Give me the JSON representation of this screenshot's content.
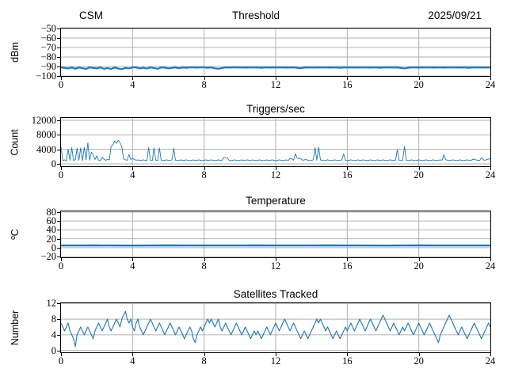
{
  "figure": {
    "background": "#ffffff",
    "line_color": "#1f77b4",
    "grid_color": "#b0b0b0",
    "spine_color": "#000000",
    "tick_color": "#000000"
  },
  "chart_data": [
    {
      "type": "line",
      "title": "Threshold",
      "title_left": "CSM",
      "title_right": "2025/09/21",
      "ylabel": "dBm",
      "xlabel": "",
      "xlim": [
        0,
        24
      ],
      "ylim": [
        -100,
        -50
      ],
      "xticks": [
        0,
        4,
        8,
        12,
        16,
        20,
        24
      ],
      "yticks": [
        -50,
        -60,
        -70,
        -80,
        -90,
        -100
      ],
      "grid": true,
      "legend": "none",
      "x_step": 0.2,
      "values": [
        -91,
        -91.5,
        -92,
        -91,
        -92.3,
        -91,
        -91.8,
        -92.5,
        -91,
        -91.5,
        -92,
        -91,
        -92.4,
        -91.6,
        -92.6,
        -91,
        -92.2,
        -92.8,
        -91.4,
        -92,
        -91,
        -91,
        -92,
        -91.3,
        -92.2,
        -91,
        -91.6,
        -92.4,
        -91,
        -91.2,
        -92,
        -91.5,
        -91,
        -91.8,
        -91,
        -91.3,
        -91,
        -91,
        -91.2,
        -91,
        -91,
        -91.4,
        -91,
        -91.9,
        -92.3,
        -91.6,
        -91,
        -91.2,
        -91,
        -91,
        -91.1,
        -91,
        -91.2,
        -91,
        -91.1,
        -91,
        -91.3,
        -91,
        -91.1,
        -91.2,
        -91,
        -91.1,
        -91,
        -91.2,
        -91.1,
        -91,
        -91.4,
        -91.8,
        -91.2,
        -91,
        -91.1,
        -91.2,
        -91,
        -91.1,
        -91,
        -91.2,
        -91,
        -91.1,
        -91.3,
        -91,
        -91.1,
        -91,
        -91.2,
        -91,
        -91.1,
        -91,
        -91.2,
        -91.1,
        -91,
        -91.3,
        -91,
        -91.1,
        -91,
        -91.2,
        -91,
        -91.6,
        -92,
        -91.3,
        -91,
        -91.1,
        -91.2,
        -91,
        -91.1,
        -91,
        -91.2,
        -91,
        -91.1,
        -91.2,
        -91,
        -91.1,
        -91,
        -91.2,
        -91,
        -91.1,
        -91.3,
        -91,
        -91.1,
        -91,
        -91.2,
        -91,
        -91.1,
        -91
      ]
    },
    {
      "type": "line",
      "title": "Triggers/sec",
      "ylabel": "Count",
      "xlabel": "",
      "xlim": [
        0,
        24
      ],
      "ylim": [
        0,
        12000
      ],
      "xticks": [
        0,
        4,
        8,
        12,
        16,
        20,
        24
      ],
      "yticks": [
        0,
        4000,
        8000,
        12000
      ],
      "grid": true,
      "legend": "none",
      "x_step": 0.1,
      "values": [
        4800,
        900,
        1100,
        800,
        4000,
        1000,
        4500,
        900,
        1200,
        4300,
        1000,
        4400,
        900,
        4600,
        1100,
        5800,
        1000,
        3200,
        2600,
        1200,
        2200,
        1000,
        900,
        1800,
        1300,
        1000,
        1200,
        1100,
        4800,
        5200,
        6300,
        5600,
        6500,
        5900,
        4700,
        1400,
        1100,
        1000,
        2600,
        1200,
        1500,
        1200,
        1000,
        1100,
        900,
        1000,
        1100,
        1000,
        900,
        4500,
        1000,
        900,
        4400,
        1000,
        900,
        4400,
        1000,
        900,
        1000,
        1100,
        1000,
        900,
        1100,
        4300,
        1000,
        900,
        1000,
        1100,
        900,
        1000,
        1100,
        1000,
        900,
        1000,
        1100,
        900,
        1000,
        1100,
        1000,
        900,
        1000,
        1100,
        900,
        1000,
        1100,
        1000,
        900,
        1000,
        1100,
        900,
        1000,
        1800,
        1700,
        1600,
        1000,
        900,
        1000,
        1100,
        1000,
        900,
        1000,
        1100,
        900,
        1000,
        1100,
        1000,
        900,
        1100,
        1000,
        900,
        1000,
        1100,
        1000,
        900,
        1000,
        1100,
        900,
        1000,
        1100,
        1000,
        900,
        1000,
        1100,
        1000,
        900,
        1000,
        1100,
        900,
        1500,
        1400,
        1000,
        2800,
        1600,
        1500,
        1400,
        1000,
        1100,
        1200,
        1000,
        900,
        1000,
        1100,
        4500,
        1000,
        4600,
        1100,
        1000,
        900,
        1000,
        1100,
        1000,
        900,
        1000,
        1100,
        1000,
        900,
        1000,
        1100,
        2800,
        1000,
        900,
        1000,
        1100,
        1000,
        900,
        1000,
        1100,
        900,
        1000,
        1100,
        1000,
        900,
        1000,
        1100,
        1000,
        900,
        1000,
        1100,
        900,
        1000,
        1100,
        1000,
        900,
        1000,
        1100,
        1000,
        900,
        1000,
        4000,
        1000,
        900,
        1000,
        4800,
        1000,
        900,
        1000,
        1100,
        1000,
        900,
        1000,
        1100,
        1000,
        900,
        1000,
        1100,
        1000,
        900,
        1000,
        1100,
        1000,
        900,
        1000,
        1100,
        1000,
        2500,
        1200,
        1000,
        900,
        1000,
        1100,
        1000,
        900,
        1000,
        1100,
        1000,
        900,
        1000,
        1100,
        1000,
        900,
        1200,
        1300,
        1100,
        1000,
        900,
        1700,
        1100,
        1000,
        1200,
        1300,
        1400
      ]
    },
    {
      "type": "line",
      "title": "Temperature",
      "ylabel": "ºC",
      "xlabel": "",
      "xlim": [
        0,
        24
      ],
      "ylim": [
        -20,
        80
      ],
      "xticks": [
        0,
        4,
        8,
        12,
        16,
        20,
        24
      ],
      "yticks": [
        -20,
        0,
        20,
        40,
        60,
        80
      ],
      "grid": true,
      "legend": "none",
      "x_step": 1,
      "values": [
        5,
        5,
        5.2,
        5,
        4.8,
        5,
        5.1,
        5,
        4.9,
        5,
        5,
        5.2,
        5,
        4.9,
        5,
        5.1,
        5,
        5,
        4.8,
        5,
        5.1,
        5,
        4.9,
        5,
        5
      ]
    },
    {
      "type": "line",
      "title": "Satellites Tracked",
      "ylabel": "Number",
      "xlabel": "",
      "xlim": [
        0,
        24
      ],
      "ylim": [
        0,
        12
      ],
      "xticks": [
        0,
        4,
        8,
        12,
        16,
        20,
        24
      ],
      "yticks": [
        0,
        4,
        8,
        12
      ],
      "grid": true,
      "legend": "none",
      "x_step": 0.1,
      "values": [
        7,
        6,
        5,
        6,
        7,
        5,
        4,
        3,
        1,
        4,
        5,
        6,
        5,
        4,
        5,
        6,
        5,
        4,
        3,
        5,
        6,
        7,
        6,
        5,
        6,
        7,
        8,
        6,
        5,
        6,
        7,
        8,
        7,
        6,
        8,
        9,
        10,
        8,
        7,
        8,
        6,
        5,
        7,
        8,
        6,
        5,
        4,
        5,
        6,
        7,
        8,
        7,
        6,
        5,
        6,
        7,
        6,
        5,
        4,
        5,
        6,
        7,
        6,
        5,
        4,
        5,
        6,
        5,
        4,
        3,
        4,
        5,
        6,
        5,
        3,
        2,
        4,
        5,
        6,
        5,
        6,
        7,
        8,
        7,
        8,
        7,
        6,
        7,
        8,
        6,
        5,
        6,
        7,
        6,
        5,
        4,
        5,
        6,
        7,
        6,
        5,
        4,
        5,
        6,
        5,
        4,
        3,
        4,
        5,
        4,
        5,
        4,
        3,
        4,
        5,
        6,
        5,
        4,
        5,
        6,
        7,
        6,
        5,
        6,
        7,
        8,
        7,
        6,
        5,
        6,
        7,
        6,
        5,
        4,
        3,
        4,
        5,
        4,
        3,
        4,
        5,
        6,
        7,
        8,
        7,
        8,
        7,
        6,
        5,
        6,
        5,
        4,
        3,
        4,
        5,
        4,
        3,
        4,
        5,
        6,
        5,
        6,
        7,
        6,
        5,
        6,
        7,
        8,
        7,
        6,
        5,
        6,
        7,
        8,
        7,
        6,
        5,
        6,
        7,
        8,
        9,
        8,
        7,
        6,
        5,
        6,
        7,
        6,
        5,
        4,
        5,
        6,
        5,
        6,
        7,
        6,
        5,
        4,
        5,
        6,
        7,
        6,
        5,
        4,
        5,
        6,
        7,
        6,
        5,
        4,
        3,
        2,
        4,
        5,
        6,
        7,
        8,
        9,
        8,
        7,
        6,
        5,
        4,
        5,
        6,
        5,
        4,
        3,
        4,
        5,
        6,
        7,
        6,
        5,
        4,
        3,
        4,
        5,
        6,
        7,
        6
      ]
    }
  ]
}
